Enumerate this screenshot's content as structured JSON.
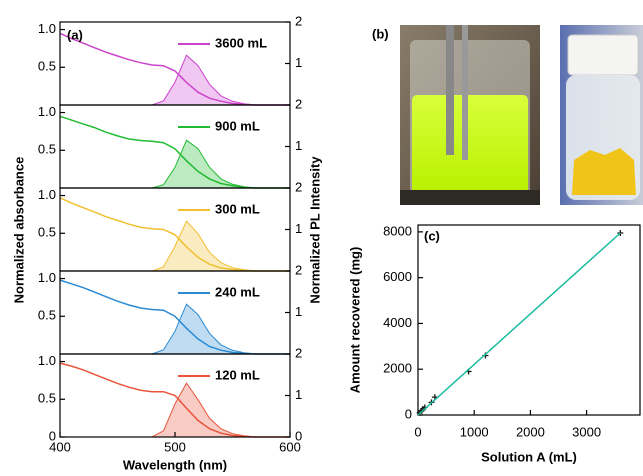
{
  "panel_b": {
    "label": "(b)"
  },
  "chart_data": [
    {
      "type": "line",
      "panel_label": "(a)",
      "y_label": "Normalized absorbance",
      "y2_label": "Normalized PL Intensity",
      "x": [
        400,
        410,
        420,
        430,
        440,
        450,
        460,
        470,
        480,
        490,
        500,
        510,
        520,
        530,
        540,
        550,
        560,
        570,
        580,
        590,
        600
      ],
      "xlim": [
        400,
        600
      ],
      "ylim": [
        0,
        1.1
      ],
      "y2lim": [
        0,
        2
      ],
      "yticks": [
        0.5,
        {
          "value": 1,
          "label": "1.0"
        }
      ],
      "y2ticks": [
        1,
        2
      ],
      "series": [
        {
          "name": "3600 mL",
          "color": "#cc44cc",
          "values": [
            0.95,
            0.88,
            0.82,
            0.76,
            0.7,
            0.65,
            0.6,
            0.56,
            0.53,
            0.52,
            0.45,
            0.3,
            0.17,
            0.09,
            0.05,
            0.02,
            0.01,
            0,
            0,
            0,
            0
          ]
        },
        {
          "color": "#cc44cc",
          "axis": "y2",
          "fill": true,
          "values": [
            0,
            0,
            0,
            0,
            0,
            0,
            0,
            0,
            0,
            0.1,
            0.55,
            1.2,
            0.95,
            0.5,
            0.22,
            0.09,
            0.03,
            0,
            0,
            0,
            0
          ]
        }
      ]
    },
    {
      "type": "line",
      "x": [
        400,
        410,
        420,
        430,
        440,
        450,
        460,
        470,
        480,
        490,
        500,
        510,
        520,
        530,
        540,
        550,
        560,
        570,
        580,
        590,
        600
      ],
      "xlim": [
        400,
        600
      ],
      "ylim": [
        0,
        1.1
      ],
      "y2lim": [
        0,
        2
      ],
      "yticks": [
        0.5,
        {
          "value": 1,
          "label": "1.0"
        }
      ],
      "y2ticks": [
        1,
        2
      ],
      "series": [
        {
          "name": "900 mL",
          "color": "#22bb33",
          "values": [
            0.95,
            0.9,
            0.85,
            0.8,
            0.74,
            0.69,
            0.65,
            0.63,
            0.62,
            0.6,
            0.52,
            0.36,
            0.22,
            0.12,
            0.06,
            0.03,
            0.01,
            0,
            0,
            0,
            0
          ]
        },
        {
          "color": "#22bb33",
          "axis": "y2",
          "fill": true,
          "values": [
            0,
            0,
            0,
            0,
            0,
            0,
            0,
            0,
            0,
            0.08,
            0.5,
            1.15,
            0.95,
            0.5,
            0.22,
            0.09,
            0.03,
            0,
            0,
            0,
            0
          ]
        }
      ]
    },
    {
      "type": "line",
      "x": [
        400,
        410,
        420,
        430,
        440,
        450,
        460,
        470,
        480,
        490,
        500,
        510,
        520,
        530,
        540,
        550,
        560,
        570,
        580,
        590,
        600
      ],
      "xlim": [
        400,
        600
      ],
      "ylim": [
        0,
        1.1
      ],
      "y2lim": [
        0,
        2
      ],
      "yticks": [
        0.5,
        {
          "value": 1,
          "label": "1.0"
        }
      ],
      "y2ticks": [
        1,
        2
      ],
      "series": [
        {
          "name": "300 mL",
          "color": "#f0c030",
          "values": [
            0.97,
            0.9,
            0.84,
            0.78,
            0.72,
            0.67,
            0.62,
            0.58,
            0.56,
            0.55,
            0.48,
            0.32,
            0.18,
            0.09,
            0.04,
            0.02,
            0.01,
            0,
            0,
            0,
            0
          ]
        },
        {
          "color": "#f0c030",
          "axis": "y2",
          "fill": true,
          "values": [
            0,
            0,
            0,
            0,
            0,
            0,
            0,
            0,
            0,
            0.1,
            0.6,
            1.2,
            0.9,
            0.45,
            0.2,
            0.08,
            0.03,
            0,
            0,
            0,
            0
          ]
        }
      ]
    },
    {
      "type": "line",
      "x": [
        400,
        410,
        420,
        430,
        440,
        450,
        460,
        470,
        480,
        490,
        500,
        510,
        520,
        530,
        540,
        550,
        560,
        570,
        580,
        590,
        600
      ],
      "xlim": [
        400,
        600
      ],
      "ylim": [
        0,
        1.1
      ],
      "y2lim": [
        0,
        2
      ],
      "yticks": [
        0.5,
        {
          "value": 1,
          "label": "1.0"
        }
      ],
      "y2ticks": [
        1,
        2
      ],
      "series": [
        {
          "name": "240 mL",
          "color": "#2a8ad4",
          "values": [
            0.98,
            0.93,
            0.88,
            0.82,
            0.76,
            0.7,
            0.65,
            0.61,
            0.59,
            0.58,
            0.5,
            0.34,
            0.2,
            0.1,
            0.05,
            0.02,
            0.01,
            0,
            0,
            0,
            0
          ]
        },
        {
          "color": "#2a8ad4",
          "axis": "y2",
          "fill": true,
          "values": [
            0,
            0,
            0,
            0,
            0,
            0,
            0,
            0,
            0,
            0.1,
            0.55,
            1.2,
            0.95,
            0.5,
            0.22,
            0.09,
            0.03,
            0,
            0,
            0,
            0
          ]
        }
      ]
    },
    {
      "type": "line",
      "x_label": "Wavelength (nm)",
      "x": [
        400,
        410,
        420,
        430,
        440,
        450,
        460,
        470,
        480,
        490,
        500,
        510,
        520,
        530,
        540,
        550,
        560,
        570,
        580,
        590,
        600
      ],
      "xlim": [
        400,
        600
      ],
      "ylim": [
        0,
        1.1
      ],
      "y2lim": [
        0,
        2
      ],
      "xticks": [
        400,
        500,
        600
      ],
      "yticks": [
        0,
        0.5,
        {
          "value": 1,
          "label": "1.0"
        }
      ],
      "y2ticks": [
        0,
        1,
        2
      ],
      "series": [
        {
          "name": "120 mL",
          "color": "#e8543a",
          "values": [
            0.98,
            0.94,
            0.89,
            0.83,
            0.77,
            0.71,
            0.66,
            0.62,
            0.6,
            0.6,
            0.55,
            0.38,
            0.22,
            0.11,
            0.05,
            0.02,
            0.01,
            0,
            0,
            0,
            0
          ]
        },
        {
          "color": "#e8543a",
          "axis": "y2",
          "fill": true,
          "values": [
            0,
            0,
            0,
            0,
            0,
            0,
            0,
            0,
            0,
            0.15,
            0.8,
            1.3,
            0.9,
            0.45,
            0.2,
            0.08,
            0.03,
            0,
            0,
            0,
            0
          ]
        }
      ]
    },
    {
      "type": "scatter",
      "panel_label": "(c)",
      "x_label": "Solution A (mL)",
      "y_label": "Amount recovered (mg)",
      "xlim": [
        0,
        3950
      ],
      "ylim": [
        0,
        8300
      ],
      "xticks": [
        0,
        1000,
        2000,
        3000
      ],
      "yticks": [
        0,
        2000,
        4000,
        6000,
        8000
      ],
      "series": [
        {
          "color": "#1a1a1a",
          "x": [
            30,
            60,
            90,
            120,
            240,
            300,
            900,
            1200,
            3600
          ],
          "values": [
            100,
            180,
            260,
            330,
            550,
            780,
            1900,
            2600,
            7950
          ]
        },
        {
          "color": "#1abc9c",
          "line": true,
          "x": [
            0,
            3600
          ],
          "values": [
            0,
            7950
          ]
        }
      ]
    }
  ]
}
